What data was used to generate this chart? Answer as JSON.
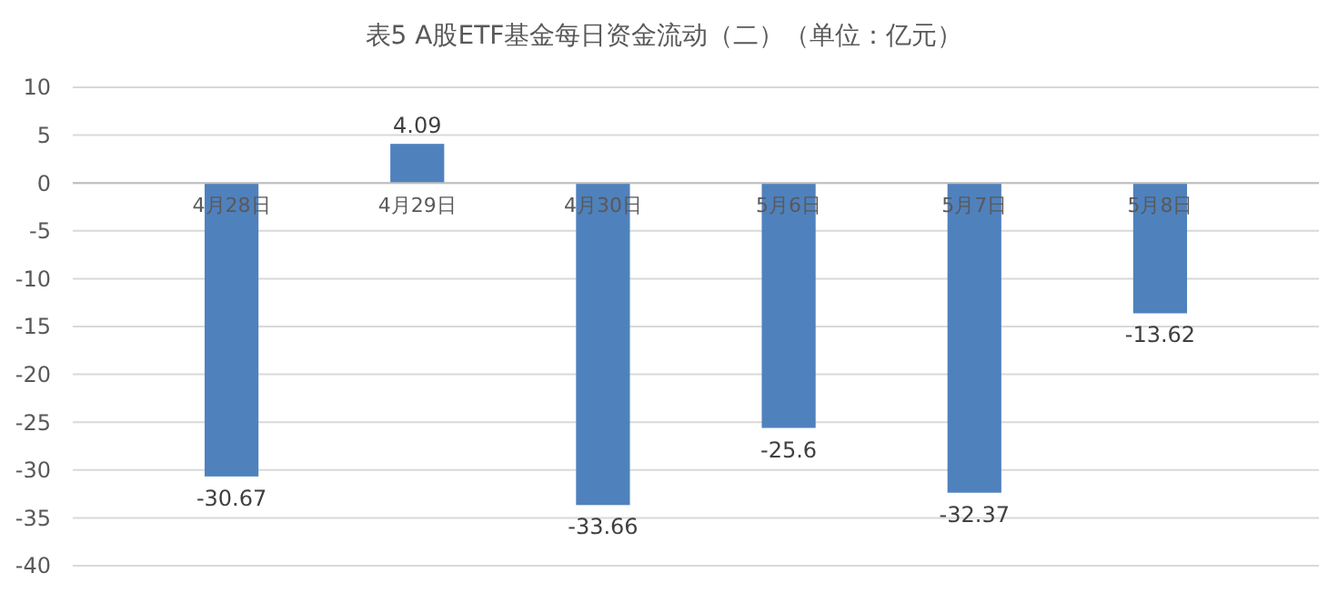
{
  "chart_data": {
    "type": "bar",
    "title": "表5   A股ETF基金每日资金流动（二）（单位：亿元）",
    "categories": [
      "4月28日",
      "4月29日",
      "4月30日",
      "5月6日",
      "5月7日",
      "5月8日"
    ],
    "values": [
      -30.67,
      4.09,
      -33.66,
      -25.6,
      -32.37,
      -13.62
    ],
    "color": "#4f81bd",
    "ylim": [
      -40,
      10
    ],
    "yticks": [
      -40,
      -35,
      -30,
      -25,
      -20,
      -15,
      -10,
      -5,
      0,
      5,
      10
    ],
    "grid": "y",
    "data_labels": true
  }
}
